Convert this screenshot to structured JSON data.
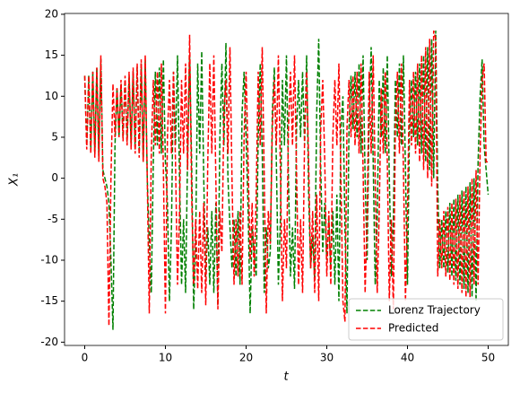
{
  "chart_data": {
    "type": "line",
    "xlabel": "t",
    "ylabel": "X₁",
    "xlim": [
      -2.5,
      52.5
    ],
    "xticks": [
      0,
      10,
      20,
      30,
      40,
      50
    ],
    "ylim": [
      -20.4,
      20.1
    ],
    "yticks": [
      -20,
      -15,
      -10,
      -5,
      0,
      5,
      10,
      15,
      20
    ],
    "grid": false,
    "legend": "lower right",
    "line_style": "dashed",
    "x": [
      0,
      0.25,
      0.5,
      0.75,
      1,
      1.25,
      1.5,
      1.75,
      2,
      2.25,
      2.5,
      2.75,
      3,
      3.25,
      3.5,
      3.75,
      4,
      4.25,
      4.5,
      4.75,
      5,
      5.25,
      5.5,
      5.75,
      6,
      6.25,
      6.5,
      6.75,
      7,
      7.25,
      7.5,
      7.75,
      8,
      8.25,
      8.5,
      8.75,
      9,
      9.25,
      9.5,
      9.75,
      10,
      10.25,
      10.5,
      10.75,
      11,
      11.25,
      11.5,
      11.75,
      12,
      12.25,
      12.5,
      12.75,
      13,
      13.25,
      13.5,
      13.75,
      14,
      14.25,
      14.5,
      14.75,
      15,
      15.25,
      15.5,
      15.75,
      16,
      16.25,
      16.5,
      16.75,
      17,
      17.25,
      17.5,
      17.75,
      18,
      18.25,
      18.5,
      18.75,
      19,
      19.25,
      19.5,
      19.75,
      20,
      20.25,
      20.5,
      20.75,
      21,
      21.25,
      21.5,
      21.75,
      22,
      22.25,
      22.5,
      22.75,
      23,
      23.25,
      23.5,
      23.75,
      24,
      24.25,
      24.5,
      24.75,
      25,
      25.25,
      25.5,
      25.75,
      26,
      26.25,
      26.5,
      26.75,
      27,
      27.25,
      27.5,
      27.75,
      28,
      28.25,
      28.5,
      28.75,
      29,
      29.25,
      29.5,
      29.75,
      30,
      30.25,
      30.5,
      30.75,
      31,
      31.25,
      31.5,
      31.75,
      32,
      32.25,
      32.5,
      32.75,
      33,
      33.25,
      33.5,
      33.75,
      34,
      34.25,
      34.5,
      34.75,
      35,
      35.25,
      35.5,
      35.75,
      36,
      36.25,
      36.5,
      36.75,
      37,
      37.25,
      37.5,
      37.75,
      38,
      38.25,
      38.5,
      38.75,
      39,
      39.25,
      39.5,
      39.75,
      40,
      40.25,
      40.5,
      40.75,
      41,
      41.25,
      41.5,
      41.75,
      42,
      42.25,
      42.5,
      42.75,
      43,
      43.25,
      43.5,
      43.75,
      44,
      44.25,
      44.5,
      44.75,
      45,
      45.25,
      45.5,
      45.75,
      46,
      46.25,
      46.5,
      46.75,
      47,
      47.25,
      47.5,
      47.75,
      48,
      48.25,
      48.5,
      48.75,
      49,
      49.25,
      49.5,
      49.75,
      50
    ],
    "series": [
      {
        "name": "Lorenz Trajectory",
        "color": "#008000",
        "values": [
          12.5,
          4,
          12.5,
          3.5,
          13,
          3,
          13.5,
          2.5,
          14.5,
          1,
          0,
          -1,
          -3,
          -10,
          -18.5,
          4,
          11,
          5,
          11.5,
          5,
          12,
          4.5,
          12.5,
          4,
          13,
          3.5,
          13.5,
          3,
          14,
          2,
          14.5,
          0,
          -8,
          -14,
          2,
          13,
          4,
          13.5,
          3,
          14.5,
          2,
          -3,
          -15,
          -6,
          13,
          4,
          15,
          0,
          -13,
          -5,
          -14,
          3,
          15,
          2,
          -16,
          -8,
          14,
          3,
          15.5,
          0,
          -12,
          -6,
          -13,
          -4,
          -14,
          -3,
          -15.5,
          5,
          14,
          4,
          16.5,
          0,
          -6,
          -11,
          -5,
          -12,
          -4,
          -13,
          8,
          13,
          5,
          -4,
          -16.5,
          -6,
          -9,
          -12,
          5,
          14,
          3,
          -14,
          -6,
          -11,
          -9,
          8,
          13.5,
          2,
          -13,
          -5,
          12,
          4,
          15,
          0,
          -12,
          -6,
          -13.5,
          6,
          12,
          5,
          13,
          4,
          15,
          -2,
          -11,
          -7,
          -12.5,
          8,
          17,
          1,
          -9,
          -3,
          -10,
          -5,
          -11,
          -4,
          -13,
          -2,
          -15,
          6,
          10,
          -6,
          -16.5,
          6,
          12.5,
          6,
          13,
          5,
          14,
          3,
          15,
          0,
          -10,
          8,
          16,
          2,
          -13,
          -5,
          12,
          5,
          13.5,
          3,
          15,
          0,
          -12,
          -5,
          12,
          5,
          14,
          4,
          15,
          1,
          -13,
          6,
          12,
          5,
          13,
          4,
          14,
          3,
          15,
          2,
          16,
          1,
          17,
          0,
          18,
          -1,
          -11,
          -5,
          -11,
          -4,
          -11.5,
          -3,
          -12,
          -2.5,
          -12.5,
          -2,
          -13,
          -1.5,
          -13.5,
          -1,
          -14,
          -0.5,
          -14.5,
          0,
          -15,
          2,
          10,
          14.5,
          4,
          1,
          -2
        ]
      },
      {
        "name": "Predicted",
        "color": "#ff0000",
        "values": [
          12.5,
          3.5,
          12.5,
          3,
          13,
          2.5,
          13.5,
          2,
          15,
          0,
          -1,
          -3,
          -18,
          0,
          11.5,
          5,
          11,
          5,
          12,
          4.5,
          12.5,
          4,
          13,
          3.5,
          13.5,
          3,
          14,
          2.5,
          14.5,
          2,
          15,
          0,
          -16.5,
          3,
          12,
          4,
          13,
          3,
          14,
          1,
          -16.5,
          5,
          12,
          3,
          13,
          2,
          -13,
          -4,
          12,
          3,
          14,
          1,
          17.5,
          -2,
          -13,
          -5,
          -13.5,
          -4,
          -14,
          -3,
          -15.5,
          2,
          14,
          3,
          15,
          0,
          -16,
          -4,
          -9,
          8,
          12,
          3,
          16,
          0,
          -13,
          -5,
          -12,
          -4,
          -13,
          5,
          13,
          2,
          -10,
          -3,
          -12,
          -2,
          13,
          4,
          16,
          0,
          -16.5,
          -4,
          -8,
          6,
          12,
          4,
          15,
          1,
          -15,
          -5,
          -11,
          6,
          13,
          4,
          15,
          1,
          -13,
          -5,
          -14,
          5,
          13,
          2,
          -11,
          -4,
          -14,
          -2,
          -15,
          6,
          12,
          2,
          -12,
          -4,
          -13,
          5,
          12,
          4,
          14,
          0,
          -15,
          -17.5,
          6,
          12,
          5,
          12.5,
          4,
          13,
          3,
          14,
          1,
          -14,
          -5,
          13,
          3,
          15,
          0,
          -14,
          -4,
          11,
          3,
          13,
          2,
          -15,
          -5,
          -16,
          6,
          13,
          3,
          14,
          1,
          -15,
          -4,
          12,
          4,
          13,
          3,
          14,
          2,
          15,
          1,
          16,
          0,
          17,
          -1,
          18,
          17,
          -12,
          -5,
          -11,
          -4,
          -12,
          -3.5,
          -12.5,
          -3,
          -13,
          -2.5,
          -13.5,
          -2,
          -14,
          -1.5,
          -14.5,
          -1,
          -14.5,
          0,
          -13,
          1,
          -13,
          3,
          12,
          14,
          2,
          2
        ]
      }
    ]
  }
}
